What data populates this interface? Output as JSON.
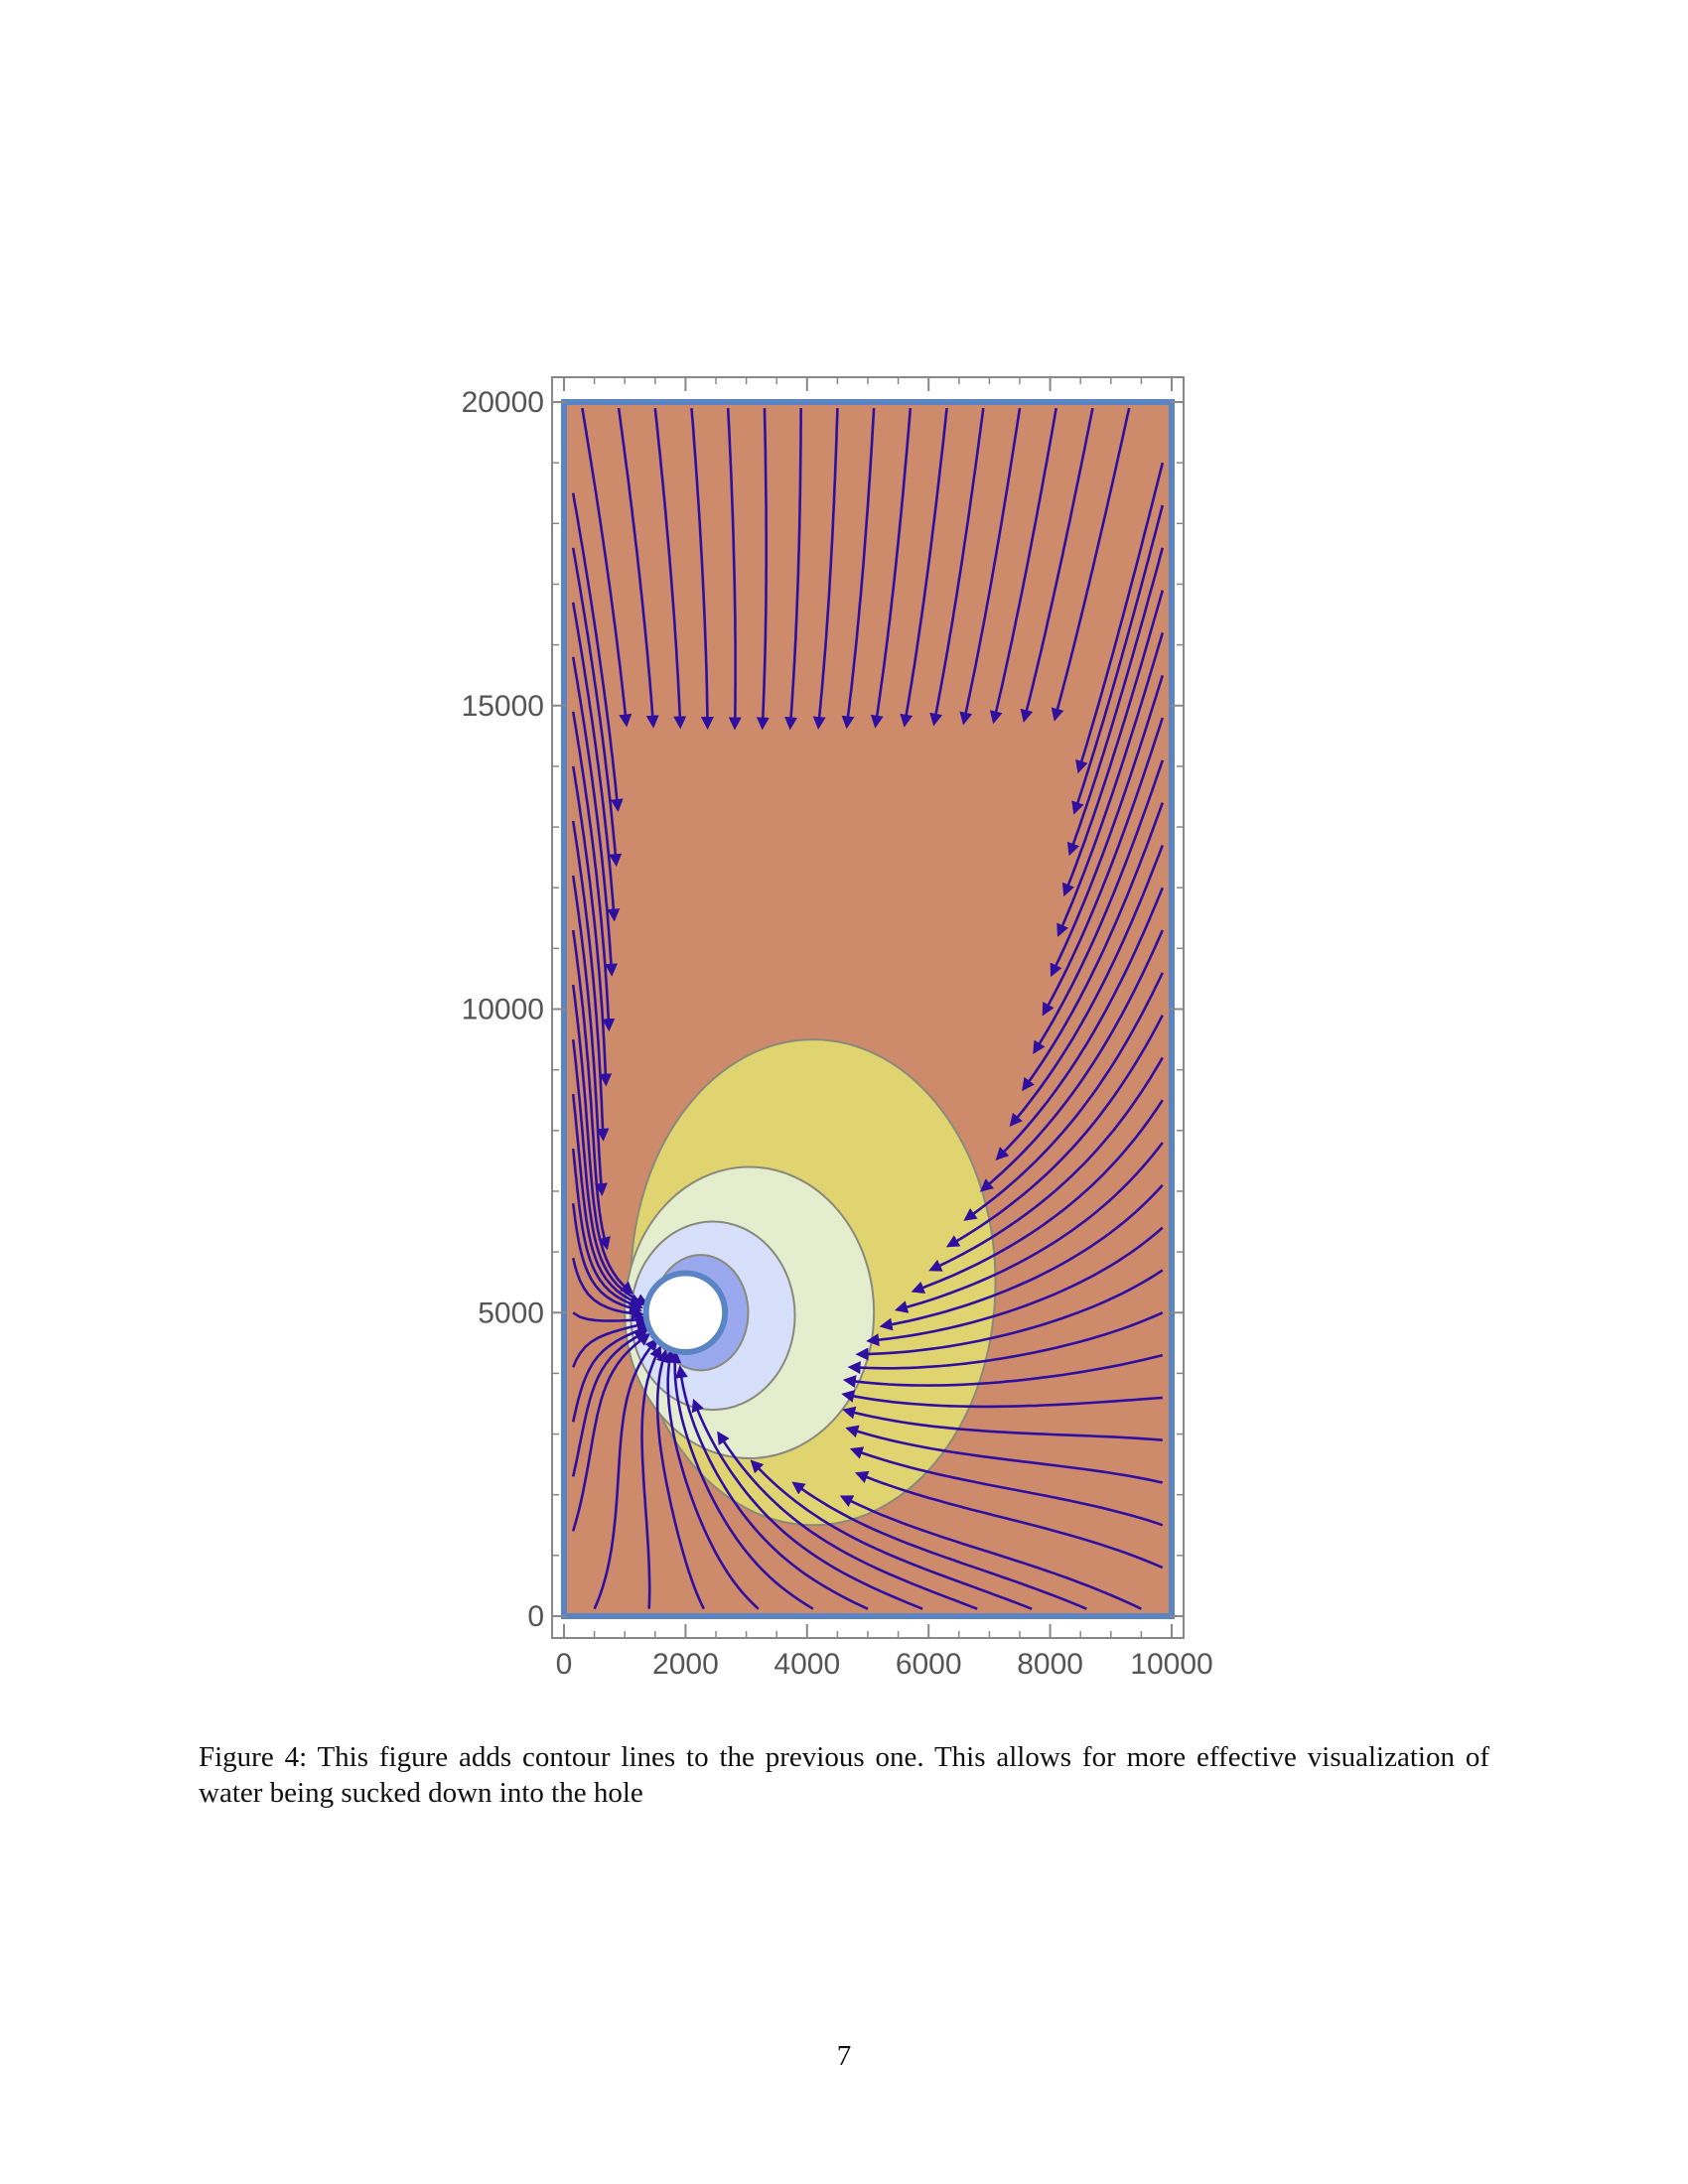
{
  "chart_data": {
    "type": "contour",
    "xlim": [
      0,
      10000
    ],
    "ylim": [
      0,
      20000
    ],
    "x_ticks": [
      "0",
      "2000",
      "4000",
      "6000",
      "8000",
      "10000"
    ],
    "y_ticks": [
      "0",
      "5000",
      "10000",
      "15000",
      "20000"
    ],
    "hole": {
      "center": [
        2000,
        5000
      ],
      "radius": 650
    },
    "contour_levels": [
      {
        "region": "hole-edge",
        "color": "#5078e0"
      },
      {
        "region": "inner",
        "color": "#9aa8ee"
      },
      {
        "region": "near",
        "color": "#d6e0fb"
      },
      {
        "region": "mid",
        "color": "#e5edcf"
      },
      {
        "region": "outer",
        "color": "#e0d470"
      },
      {
        "region": "background",
        "color": "#cd8b6c"
      }
    ],
    "streamline_color": "#2e0fa0",
    "boundary_color": "#5b84c4",
    "grid": false
  },
  "caption": "Figure 4: This figure adds contour lines to the previous one. This allows for more effective visualization of water being sucked down into the hole",
  "page_number": "7"
}
